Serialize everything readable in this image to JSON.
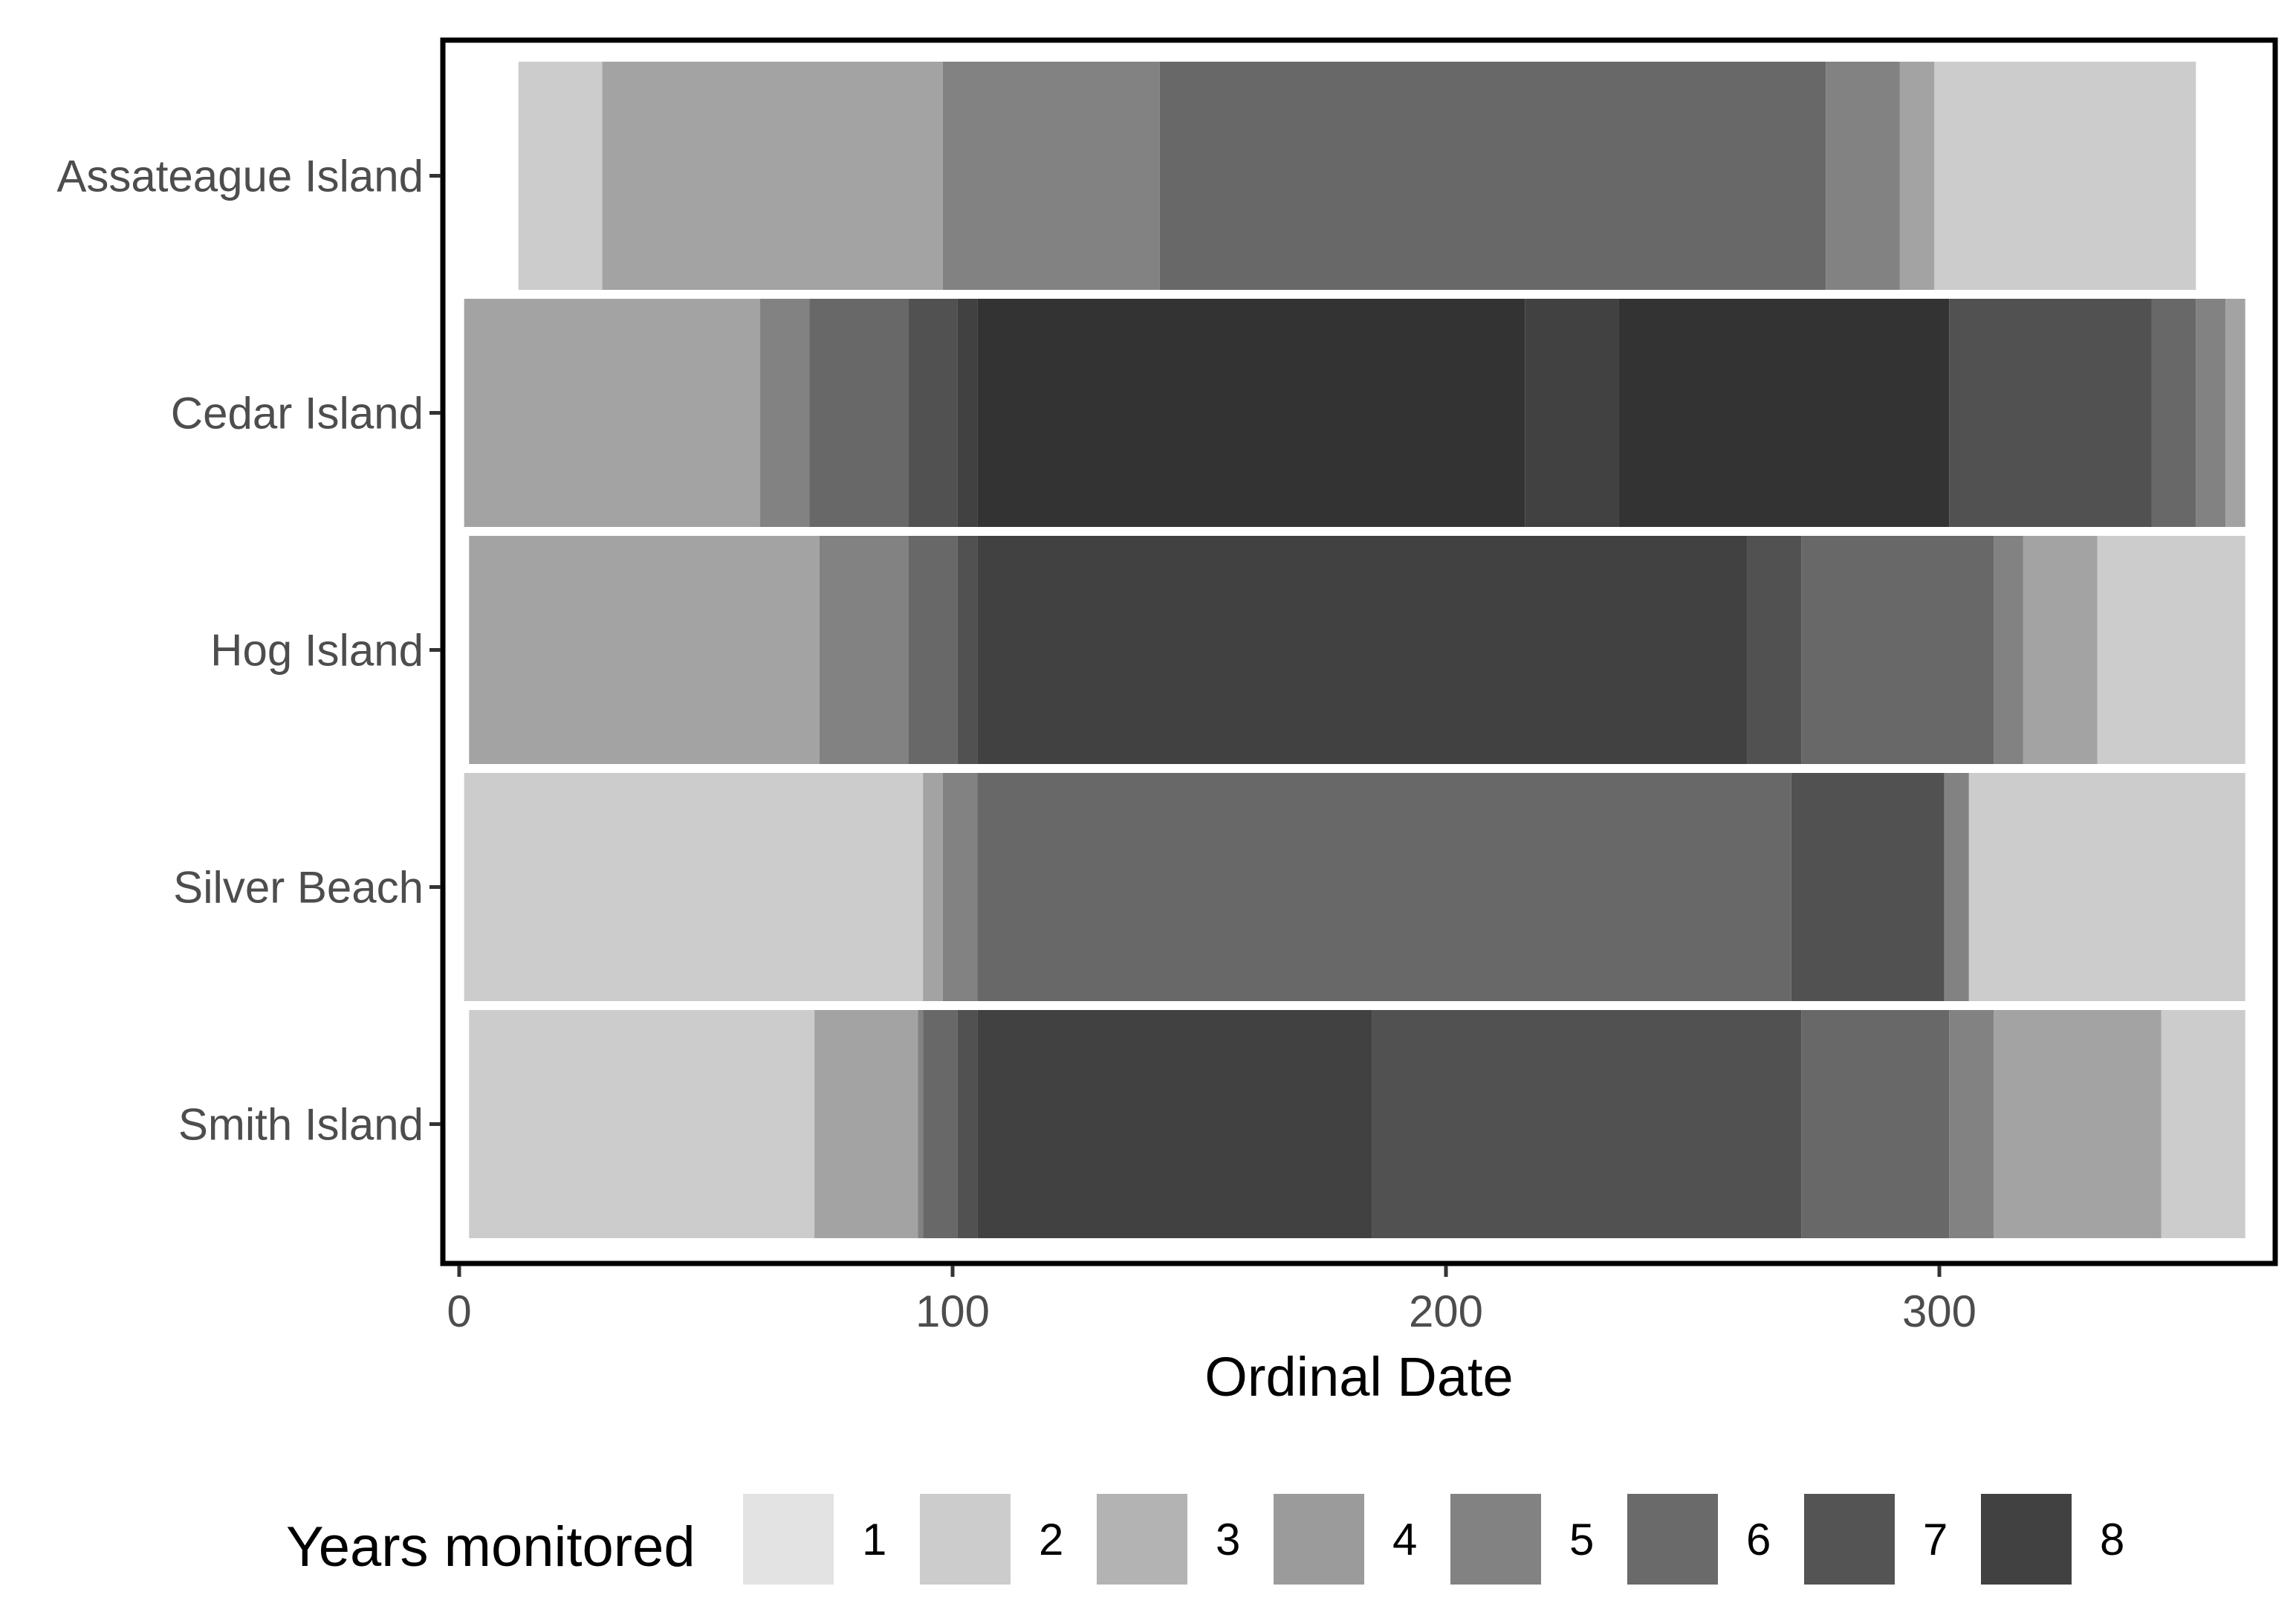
{
  "chart_data": {
    "type": "bar",
    "orientation": "horizontal",
    "xlabel": "Ordinal Date",
    "ylabel": "",
    "xlim": [
      0,
      366
    ],
    "xticks": [
      0,
      100,
      200,
      300
    ],
    "categories": [
      "Assateague Island",
      "Cedar Island",
      "Hog Island",
      "Silver Beach",
      "Smith Island"
    ],
    "legend": {
      "title": "Years monitored",
      "position": "bottom",
      "levels": [
        {
          "label": "1",
          "color": "#e3e3e3"
        },
        {
          "label": "2",
          "color": "#cccccc"
        },
        {
          "label": "3",
          "color": "#b3b3b3"
        },
        {
          "label": "4",
          "color": "#9b9b9b"
        },
        {
          "label": "5",
          "color": "#828282"
        },
        {
          "label": "6",
          "color": "#6a6a6a"
        },
        {
          "label": "7",
          "color": "#545454"
        },
        {
          "label": "8",
          "color": "#414141"
        }
      ]
    },
    "segments": {
      "Assateague Island": [
        {
          "start": 12,
          "end": 29,
          "color": "#cccccc"
        },
        {
          "start": 29,
          "end": 98,
          "color": "#a3a3a3"
        },
        {
          "start": 98,
          "end": 142,
          "color": "#828282"
        },
        {
          "start": 142,
          "end": 277,
          "color": "#686868"
        },
        {
          "start": 277,
          "end": 292,
          "color": "#828282"
        },
        {
          "start": 292,
          "end": 299,
          "color": "#a3a3a3"
        },
        {
          "start": 299,
          "end": 352,
          "color": "#cccccc"
        }
      ],
      "Cedar Island": [
        {
          "start": 1,
          "end": 61,
          "color": "#a3a3a3"
        },
        {
          "start": 61,
          "end": 71,
          "color": "#828282"
        },
        {
          "start": 71,
          "end": 91,
          "color": "#686868"
        },
        {
          "start": 91,
          "end": 101,
          "color": "#515151"
        },
        {
          "start": 101,
          "end": 105,
          "color": "#414141"
        },
        {
          "start": 105,
          "end": 216,
          "color": "#333333"
        },
        {
          "start": 216,
          "end": 235,
          "color": "#414141"
        },
        {
          "start": 235,
          "end": 302,
          "color": "#333333"
        },
        {
          "start": 302,
          "end": 343,
          "color": "#515151"
        },
        {
          "start": 343,
          "end": 352,
          "color": "#686868"
        },
        {
          "start": 352,
          "end": 358,
          "color": "#828282"
        },
        {
          "start": 358,
          "end": 362,
          "color": "#a3a3a3"
        }
      ],
      "Hog Island": [
        {
          "start": 2,
          "end": 73,
          "color": "#a3a3a3"
        },
        {
          "start": 73,
          "end": 91,
          "color": "#828282"
        },
        {
          "start": 91,
          "end": 101,
          "color": "#686868"
        },
        {
          "start": 101,
          "end": 105,
          "color": "#515151"
        },
        {
          "start": 105,
          "end": 261,
          "color": "#414141"
        },
        {
          "start": 261,
          "end": 272,
          "color": "#515151"
        },
        {
          "start": 272,
          "end": 311,
          "color": "#686868"
        },
        {
          "start": 311,
          "end": 317,
          "color": "#828282"
        },
        {
          "start": 317,
          "end": 332,
          "color": "#a3a3a3"
        },
        {
          "start": 332,
          "end": 362,
          "color": "#cccccc"
        }
      ],
      "Silver Beach": [
        {
          "start": 1,
          "end": 94,
          "color": "#cccccc"
        },
        {
          "start": 94,
          "end": 98,
          "color": "#a3a3a3"
        },
        {
          "start": 98,
          "end": 105,
          "color": "#828282"
        },
        {
          "start": 105,
          "end": 270,
          "color": "#686868"
        },
        {
          "start": 270,
          "end": 301,
          "color": "#515151"
        },
        {
          "start": 301,
          "end": 306,
          "color": "#828282"
        },
        {
          "start": 306,
          "end": 362,
          "color": "#cccccc"
        }
      ],
      "Smith Island": [
        {
          "start": 2,
          "end": 72,
          "color": "#cccccc"
        },
        {
          "start": 72,
          "end": 93,
          "color": "#a3a3a3"
        },
        {
          "start": 93,
          "end": 94,
          "color": "#828282"
        },
        {
          "start": 94,
          "end": 101,
          "color": "#686868"
        },
        {
          "start": 101,
          "end": 105,
          "color": "#515151"
        },
        {
          "start": 105,
          "end": 185,
          "color": "#414141"
        },
        {
          "start": 185,
          "end": 272,
          "color": "#515151"
        },
        {
          "start": 272,
          "end": 302,
          "color": "#686868"
        },
        {
          "start": 302,
          "end": 311,
          "color": "#828282"
        },
        {
          "start": 311,
          "end": 345,
          "color": "#a3a3a3"
        },
        {
          "start": 345,
          "end": 362,
          "color": "#cccccc"
        }
      ]
    },
    "grid": false
  }
}
